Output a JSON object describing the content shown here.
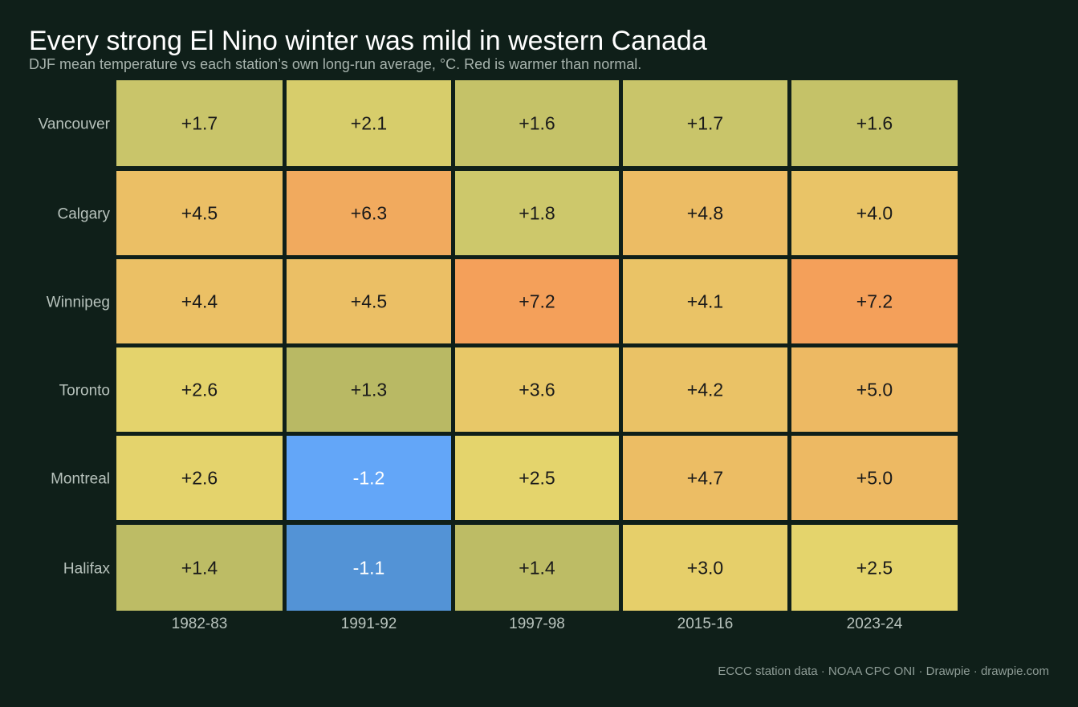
{
  "chart_data": {
    "type": "heatmap",
    "title": "Every strong El Nino winter was mild in western Canada",
    "subtitle": "DJF mean temperature vs each station’s own long-run average, °C. Red is warmer than normal.",
    "columns": [
      "1982-83",
      "1991-92",
      "1997-98",
      "2015-16",
      "2023-24"
    ],
    "rows": [
      "Vancouver",
      "Calgary",
      "Winnipeg",
      "Toronto",
      "Montreal",
      "Halifax"
    ],
    "values": [
      [
        1.7,
        2.1,
        1.6,
        1.7,
        1.6
      ],
      [
        4.5,
        6.3,
        1.8,
        4.8,
        4.0
      ],
      [
        4.4,
        4.5,
        7.2,
        4.1,
        7.2
      ],
      [
        2.6,
        1.3,
        3.6,
        4.2,
        5.0
      ],
      [
        2.6,
        -1.2,
        2.5,
        4.7,
        5.0
      ],
      [
        1.4,
        -1.1,
        1.4,
        3.0,
        2.5
      ]
    ],
    "labels": [
      [
        "+1.7",
        "+2.1",
        "+1.6",
        "+1.7",
        "+1.6"
      ],
      [
        "+4.5",
        "+6.3",
        "+1.8",
        "+4.8",
        "+4.0"
      ],
      [
        "+4.4",
        "+4.5",
        "+7.2",
        "+4.1",
        "+7.2"
      ],
      [
        "+2.6",
        "+1.3",
        "+3.6",
        "+4.2",
        "+5.0"
      ],
      [
        "+2.6",
        "-1.2",
        "+2.5",
        "+4.7",
        "+5.0"
      ],
      [
        "+1.4",
        "-1.1",
        "+1.4",
        "+3.0",
        "+2.5"
      ]
    ],
    "colors": {
      "background": "#0f1f19",
      "warm_scale": [
        "#b9b964",
        "#cdc86b",
        "#e4d46c",
        "#ebbf65",
        "#f4a05a"
      ],
      "cold_scale": [
        "#5393d6",
        "#63a6f8"
      ]
    }
  },
  "footer": {
    "source": "ECCC station data · NOAA CPC ONI  ·  Drawpie · drawpie.com"
  }
}
